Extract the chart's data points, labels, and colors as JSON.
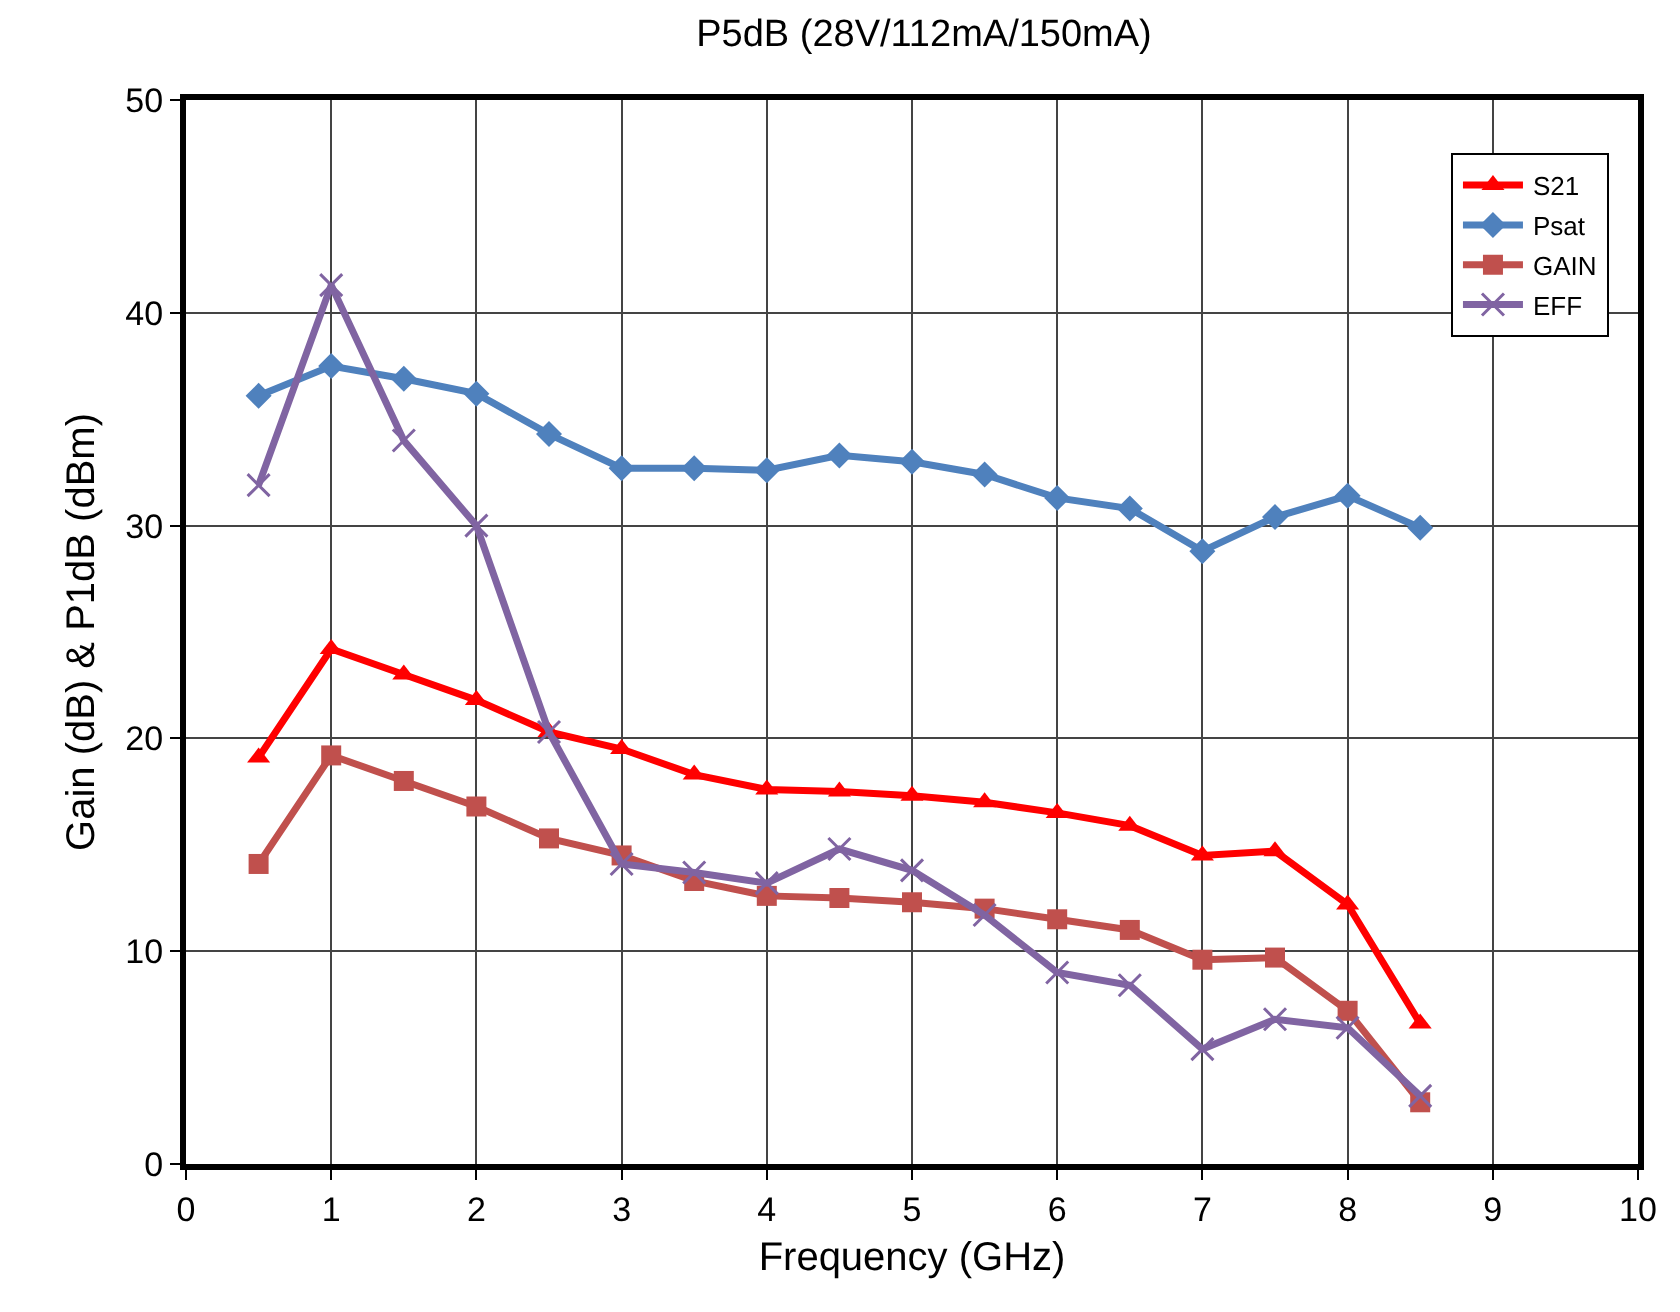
{
  "chart_data": {
    "type": "line",
    "title": "P5dB (28V/112mA/150mA)",
    "xlabel": "Frequency (GHz)",
    "ylabel": "Gain (dB) & P1dB (dBm)",
    "x": [
      0.5,
      1,
      1.5,
      2,
      2.5,
      3,
      3.5,
      4,
      4.5,
      5,
      5.5,
      6,
      6.5,
      7,
      7.5,
      8,
      8.5
    ],
    "series": [
      {
        "name": "S21",
        "color": "#ff0000",
        "marker": "triangle",
        "values": [
          19.1,
          24.2,
          23.0,
          21.8,
          20.3,
          19.5,
          18.3,
          17.6,
          17.5,
          17.3,
          17.0,
          16.5,
          15.9,
          14.5,
          14.7,
          12.2,
          6.6
        ]
      },
      {
        "name": "Psat",
        "color": "#4f81bd",
        "marker": "diamond",
        "values": [
          36.1,
          37.5,
          36.9,
          36.2,
          34.3,
          32.7,
          32.7,
          32.6,
          33.3,
          33.0,
          32.4,
          31.3,
          30.8,
          28.8,
          30.4,
          31.4,
          29.9
        ]
      },
      {
        "name": "GAIN",
        "color": "#c0504d",
        "marker": "square",
        "values": [
          14.1,
          19.2,
          18.0,
          16.8,
          15.3,
          14.5,
          13.3,
          12.6,
          12.5,
          12.3,
          12.0,
          11.5,
          11.0,
          9.6,
          9.7,
          7.2,
          2.9
        ]
      },
      {
        "name": "EFF",
        "color": "#8064a2",
        "marker": "cross",
        "values": [
          31.9,
          41.3,
          34.0,
          30.0,
          20.3,
          14.1,
          13.7,
          13.2,
          14.8,
          13.8,
          11.7,
          9.0,
          8.4,
          5.4,
          6.8,
          6.4,
          3.2
        ]
      }
    ],
    "xlim": [
      0,
      10
    ],
    "xticks": [
      0,
      1,
      2,
      3,
      4,
      5,
      6,
      7,
      8,
      9,
      10
    ],
    "ylim": [
      0,
      50
    ],
    "yticks": [
      0,
      10,
      20,
      30,
      40,
      50
    ],
    "grid": true,
    "legend": "top right",
    "line_style": "solid"
  }
}
